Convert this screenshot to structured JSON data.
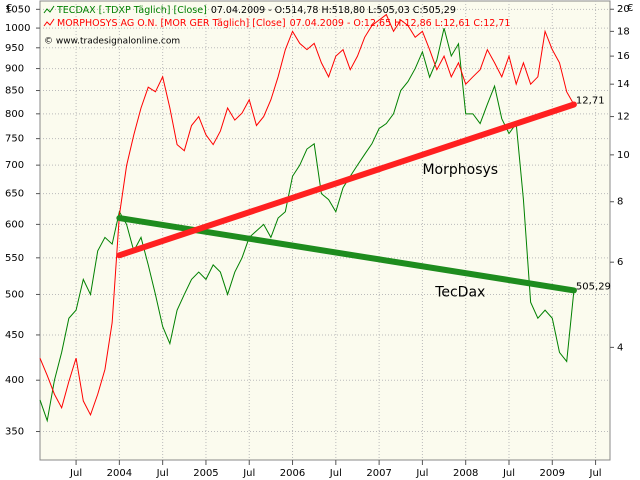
{
  "chart_data": {
    "type": "line",
    "source": "© www.tradesignalonline.com",
    "y_unit": "€",
    "y2_unit": "€",
    "log_scale": true,
    "grid": true,
    "x": [
      "2003-02",
      "2003-03",
      "2003-04",
      "2003-05",
      "2003-06",
      "2003-07",
      "2003-08",
      "2003-09",
      "2003-10",
      "2003-11",
      "2003-12",
      "2004-01",
      "2004-02",
      "2004-03",
      "2004-04",
      "2004-05",
      "2004-06",
      "2004-07",
      "2004-08",
      "2004-09",
      "2004-10",
      "2004-11",
      "2004-12",
      "2005-01",
      "2005-02",
      "2005-03",
      "2005-04",
      "2005-05",
      "2005-06",
      "2005-07",
      "2005-08",
      "2005-09",
      "2005-10",
      "2005-11",
      "2005-12",
      "2006-01",
      "2006-02",
      "2006-03",
      "2006-04",
      "2006-05",
      "2006-06",
      "2006-07",
      "2006-08",
      "2006-09",
      "2006-10",
      "2006-11",
      "2006-12",
      "2007-01",
      "2007-02",
      "2007-03",
      "2007-04",
      "2007-05",
      "2007-06",
      "2007-07",
      "2007-08",
      "2007-09",
      "2007-10",
      "2007-11",
      "2007-12",
      "2008-01",
      "2008-02",
      "2008-03",
      "2008-04",
      "2008-05",
      "2008-06",
      "2008-07",
      "2008-08",
      "2008-09",
      "2008-10",
      "2008-11",
      "2008-12",
      "2009-01",
      "2009-02",
      "2009-03",
      "2009-04"
    ],
    "series": [
      {
        "name": "TECDAX [.TDXP  Täglich] [Close]",
        "info": "07.04.2009 - O:514,78 H:518,80 L:505,03 C:505,29",
        "color": "#008000",
        "axis": "y",
        "values": [
          380,
          360,
          400,
          430,
          470,
          480,
          520,
          500,
          560,
          580,
          570,
          620,
          600,
          560,
          580,
          540,
          500,
          460,
          440,
          480,
          500,
          520,
          530,
          520,
          540,
          530,
          500,
          530,
          550,
          580,
          590,
          600,
          580,
          610,
          620,
          680,
          700,
          730,
          740,
          650,
          640,
          620,
          660,
          680,
          700,
          720,
          740,
          770,
          780,
          800,
          850,
          870,
          900,
          940,
          880,
          920,
          1000,
          930,
          960,
          800,
          800,
          780,
          820,
          860,
          790,
          760,
          780,
          640,
          490,
          470,
          480,
          470,
          430,
          420,
          505.29
        ]
      },
      {
        "name": "MORPHOSYS AG O.N. [MOR GER  Täglich] [Close]",
        "info": "07.04.2009 - O:12,65 H:12,86 L:12,61 C:12,71",
        "color": "#ff0000",
        "axis": "y2",
        "values": [
          3.8,
          3.5,
          3.2,
          3.0,
          3.4,
          3.8,
          3.1,
          2.9,
          3.2,
          3.6,
          4.5,
          7.5,
          9.5,
          11.0,
          12.5,
          13.8,
          13.5,
          14.5,
          12.5,
          10.5,
          10.2,
          11.5,
          12.0,
          11.0,
          10.5,
          11.2,
          12.5,
          11.8,
          12.2,
          13.0,
          11.5,
          12.0,
          13.0,
          14.5,
          16.5,
          18.0,
          17.0,
          16.5,
          17.0,
          15.5,
          14.5,
          16.0,
          16.5,
          15.0,
          16.0,
          17.5,
          18.5,
          19.0,
          19.5,
          18.0,
          19.0,
          18.5,
          17.5,
          18.0,
          16.5,
          15.0,
          16.0,
          14.5,
          15.5,
          14.0,
          14.5,
          15.0,
          16.5,
          15.5,
          14.5,
          16.0,
          14.0,
          15.5,
          14.0,
          14.5,
          18.0,
          16.5,
          15.5,
          13.5,
          12.71
        ]
      }
    ],
    "trendlines": [
      {
        "name": "TecDax",
        "color": "#1e8c1e",
        "axis": "y",
        "x": [
          "2004-01",
          "2009-04"
        ],
        "values": [
          610,
          505.29
        ],
        "end_label": "505,29"
      },
      {
        "name": "Morphosys",
        "color": "#ff2020",
        "axis": "y2",
        "x": [
          "2004-01",
          "2009-04"
        ],
        "values": [
          6.2,
          12.71
        ],
        "end_label": "12,71"
      }
    ],
    "xlim": [
      "2003-02",
      "2009-09"
    ],
    "xticks": [
      {
        "value": "2003-07",
        "label": "Jul"
      },
      {
        "value": "2004-01",
        "label": "2004"
      },
      {
        "value": "2004-07",
        "label": "Jul"
      },
      {
        "value": "2005-01",
        "label": "2005"
      },
      {
        "value": "2005-07",
        "label": "Jul"
      },
      {
        "value": "2006-01",
        "label": "2006"
      },
      {
        "value": "2006-07",
        "label": "Jul"
      },
      {
        "value": "2007-01",
        "label": "2007"
      },
      {
        "value": "2007-07",
        "label": "Jul"
      },
      {
        "value": "2008-01",
        "label": "2008"
      },
      {
        "value": "2008-07",
        "label": "Jul"
      },
      {
        "value": "2009-01",
        "label": "2009"
      },
      {
        "value": "2009-07",
        "label": "Jul"
      }
    ],
    "ylim": [
      325,
      1073
    ],
    "yticks": [
      350,
      400,
      450,
      500,
      550,
      600,
      650,
      700,
      750,
      800,
      850,
      900,
      950,
      1000,
      1050
    ],
    "y2lim": [
      2.34,
      20.8
    ],
    "y2ticks": [
      4,
      6,
      8,
      10,
      12,
      14,
      16,
      18,
      20
    ]
  }
}
